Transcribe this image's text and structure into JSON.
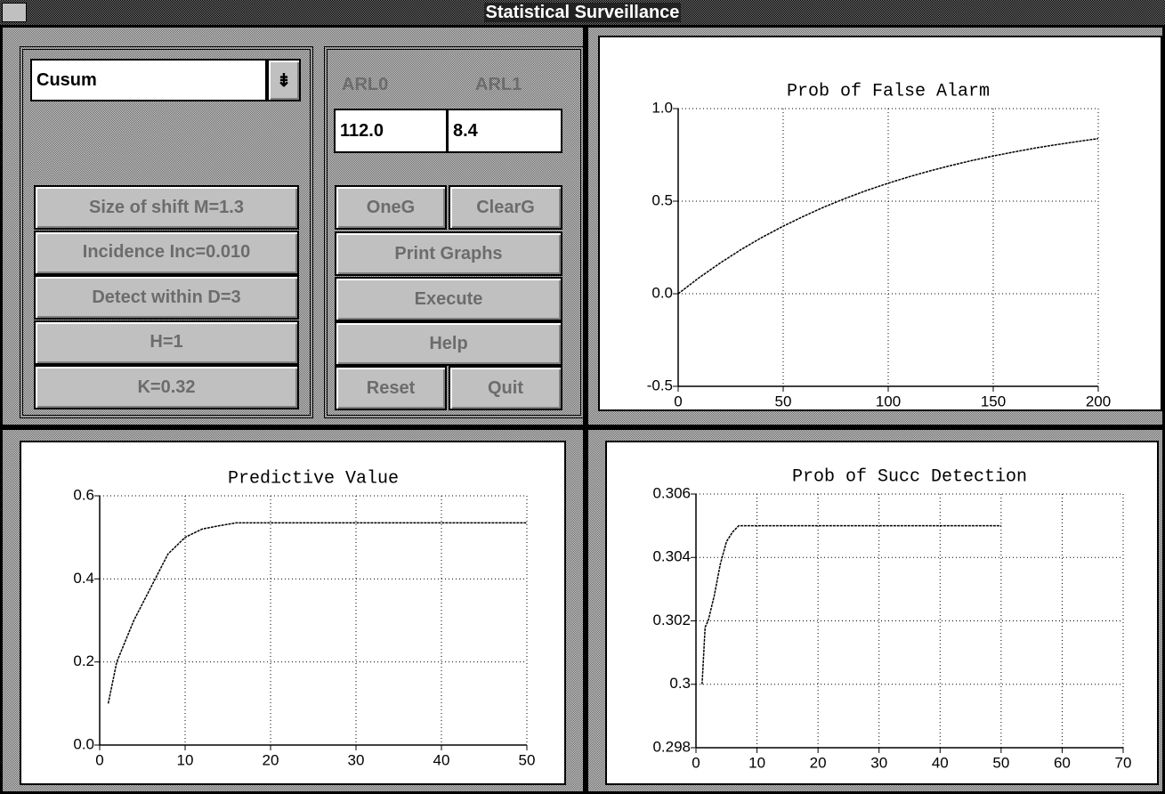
{
  "window": {
    "title": "Statistical Surveillance"
  },
  "controls": {
    "method": "Cusum",
    "arl0_label": "ARL0",
    "arl1_label": "ARL1",
    "arl0_value": "112.0",
    "arl1_value": "8.4",
    "left_buttons": [
      "Size of shift M=1.3",
      "Incidence Inc=0.010",
      "Detect within D=3",
      "H=1",
      "K=0.32"
    ],
    "oneg": "OneG",
    "clearg": "ClearG",
    "print": "Print Graphs",
    "execute": "Execute",
    "help": "Help",
    "reset": "Reset",
    "quit": "Quit"
  },
  "chart_data": [
    {
      "type": "line",
      "title": "Prob of False Alarm",
      "color": "#000000",
      "grid": true,
      "x": [
        0,
        10,
        20,
        30,
        40,
        50,
        60,
        70,
        80,
        90,
        100,
        110,
        120,
        130,
        140,
        150,
        160,
        170,
        180,
        190,
        200
      ],
      "values": [
        0,
        0.087,
        0.166,
        0.239,
        0.305,
        0.365,
        0.42,
        0.471,
        0.517,
        0.559,
        0.597,
        0.632,
        0.664,
        0.693,
        0.72,
        0.744,
        0.766,
        0.787,
        0.805,
        0.822,
        0.838
      ],
      "xlim": [
        0,
        200
      ],
      "xticks": [
        0,
        50,
        100,
        150,
        200
      ],
      "ylim": [
        -0.5,
        1
      ],
      "yticks": [
        -0.5,
        {
          "value": 0,
          "label": "0.0"
        },
        0.5,
        {
          "value": 1,
          "label": "1.0"
        }
      ]
    },
    {
      "type": "line",
      "title": "Predictive Value",
      "color": "#000000",
      "grid": true,
      "x": [
        1,
        2,
        3,
        4,
        5,
        6,
        7,
        8,
        9,
        10,
        12,
        14,
        16,
        18,
        20,
        30,
        40,
        50
      ],
      "values": [
        0.1,
        0.2,
        0.25,
        0.3,
        0.34,
        0.38,
        0.42,
        0.46,
        0.48,
        0.5,
        0.52,
        0.528,
        0.535,
        0.535,
        0.535,
        0.535,
        0.535,
        0.535
      ],
      "xlim": [
        0,
        50
      ],
      "xticks": [
        0,
        10,
        20,
        30,
        40,
        50
      ],
      "ylim": [
        0,
        0.6
      ],
      "yticks": [
        {
          "value": 0,
          "label": "0.0"
        },
        0.2,
        0.4,
        0.6
      ]
    },
    {
      "type": "line",
      "title": "Prob of Succ Detection",
      "color": "#000000",
      "grid": true,
      "x": [
        1,
        1.5,
        2,
        3,
        4,
        5,
        6,
        7,
        8,
        20,
        30,
        40,
        50
      ],
      "values": [
        0.3,
        0.3018,
        0.302,
        0.3028,
        0.3038,
        0.3045,
        0.3048,
        0.305,
        0.305,
        0.305,
        0.305,
        0.305,
        0.305
      ],
      "xlim": [
        0,
        70
      ],
      "xticks": [
        0,
        10,
        20,
        30,
        40,
        50,
        60,
        70
      ],
      "ylim": [
        0.298,
        0.306
      ],
      "yticks": [
        0.298,
        0.3,
        0.302,
        0.304,
        0.306
      ]
    }
  ]
}
